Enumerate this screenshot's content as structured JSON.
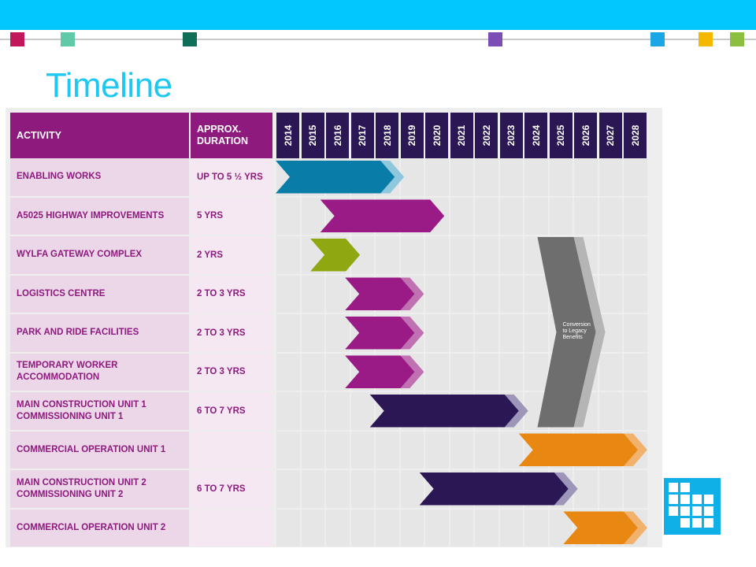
{
  "slide": {
    "title": "Timeline",
    "accent_squares": [
      {
        "color": "#c2185b"
      },
      {
        "color": "#5fc9a8"
      },
      {
        "color": "#0e6e57"
      },
      {
        "color": "#7b4db5"
      },
      {
        "color": "#1ba7e6"
      },
      {
        "color": "#f5b800"
      },
      {
        "color": "#8cbf3f"
      }
    ]
  },
  "table": {
    "header_activity": "ACTIVITY",
    "header_duration": "APPROX.\nDURATION",
    "years": [
      "2014",
      "2015",
      "2016",
      "2017",
      "2018",
      "2019",
      "2020",
      "2021",
      "2022",
      "2023",
      "2024",
      "2025",
      "2026",
      "2027",
      "2028"
    ],
    "rows": [
      {
        "activity": "ENABLING WORKS",
        "duration": "UP TO 5 ½ YRS"
      },
      {
        "activity": "A5025 HIGHWAY IMPROVEMENTS",
        "duration": "5 YRS"
      },
      {
        "activity": "WYLFA GATEWAY COMPLEX",
        "duration": "2 YRS"
      },
      {
        "activity": "LOGISTICS CENTRE",
        "duration": "2 TO 3 YRS"
      },
      {
        "activity": "PARK AND RIDE FACILITIES",
        "duration": "2 TO 3 YRS"
      },
      {
        "activity": "TEMPORARY WORKER\nACCOMMODATION",
        "duration": "2 TO 3 YRS"
      },
      {
        "activity": "MAIN CONSTRUCTION UNIT 1\nCOMMISSIONING UNIT 1",
        "duration": "6 TO 7 YRS"
      },
      {
        "activity": "COMMERCIAL OPERATION UNIT 1",
        "duration": ""
      },
      {
        "activity": "MAIN CONSTRUCTION UNIT 2\nCOMMISSIONING UNIT 2",
        "duration": "6 TO 7 YRS"
      },
      {
        "activity": "COMMERCIAL OPERATION UNIT 2",
        "duration": ""
      }
    ],
    "bars": [
      {
        "row": 0,
        "start": 2014,
        "end": 2018.8,
        "color": "#0a7ca8",
        "fade": "#8fc7dd"
      },
      {
        "row": 1,
        "start": 2015.8,
        "end": 2020.8,
        "color": "#9a1a86",
        "fade": null
      },
      {
        "row": 2,
        "start": 2015.4,
        "end": 2017.4,
        "color": "#8fa812",
        "fade": null
      },
      {
        "row": 3,
        "start": 2016.8,
        "end": 2019.6,
        "color": "#9a1a86",
        "fade": "#c071b2"
      },
      {
        "row": 4,
        "start": 2016.8,
        "end": 2019.6,
        "color": "#9a1a86",
        "fade": "#c071b2"
      },
      {
        "row": 5,
        "start": 2016.8,
        "end": 2019.6,
        "color": "#9a1a86",
        "fade": "#c071b2"
      },
      {
        "row": 6,
        "start": 2017.8,
        "end": 2023.8,
        "color": "#2a1754",
        "fade": "#9d96b8"
      },
      {
        "row": 7,
        "start": 2023.8,
        "end": 2028.6,
        "color": "#e88813",
        "fade": "#f0b26c"
      },
      {
        "row": 8,
        "start": 2019.8,
        "end": 2025.8,
        "color": "#2a1754",
        "fade": "#9d96b8"
      },
      {
        "row": 9,
        "start": 2025.6,
        "end": 2028.6,
        "color": "#e88813",
        "fade": "#f0b26c"
      }
    ],
    "legacy": {
      "label": "Conversion\nto Legacy\nBenefits",
      "color": "#6e6e6e",
      "fade": "#b5b5b5"
    }
  }
}
